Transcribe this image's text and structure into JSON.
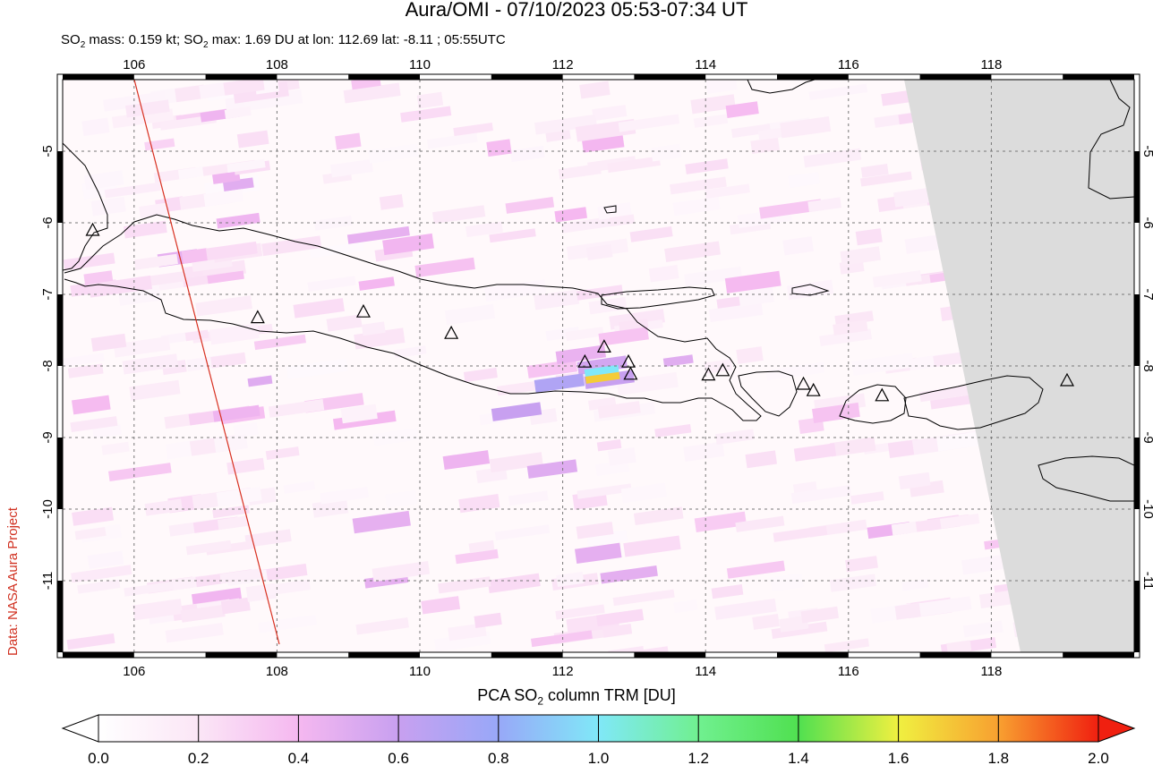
{
  "title": "Aura/OMI - 07/10/2023 05:53-07:34 UT",
  "subtitle": {
    "mass_prefix": "SO",
    "mass_sub": "2",
    "mass_text": " mass: 0.159 kt; SO",
    "max_sub": "2",
    "max_text": " max: 1.69 DU at lon: 112.69 lat: -8.11 ; 05:55UTC"
  },
  "credit": "Data: NASA Aura Project",
  "map": {
    "lon_ticks": [
      "106",
      "108",
      "110",
      "112",
      "114",
      "116",
      "118"
    ],
    "lat_ticks": [
      "-5",
      "-6",
      "-7",
      "-8",
      "-9",
      "-10",
      "-11"
    ],
    "lon_range": [
      105,
      120
    ],
    "lat_range": [
      -12,
      -4
    ],
    "max_point": {
      "lon": 112.69,
      "lat": -8.11,
      "value": 1.69
    },
    "volcano_marker": "volcano-triangle-icon",
    "no_data_color": "#dcdcdc",
    "coastline_color": "#000000",
    "orbit_track_color": "#d83020"
  },
  "colorbar": {
    "title_prefix": "PCA SO",
    "title_sub": "2",
    "title_suffix": " column TRM [DU]",
    "tick_labels": [
      "0.0",
      "0.2",
      "0.4",
      "0.6",
      "0.8",
      "1.0",
      "1.2",
      "1.4",
      "1.6",
      "1.8",
      "2.0"
    ],
    "range": [
      0,
      2
    ],
    "colors": [
      "#ffffff",
      "#fbe6f6",
      "#f5b8f0",
      "#c8a0f0",
      "#98a8f8",
      "#80e8f8",
      "#70f090",
      "#50e050",
      "#f0f040",
      "#f8a030",
      "#f02010"
    ]
  }
}
